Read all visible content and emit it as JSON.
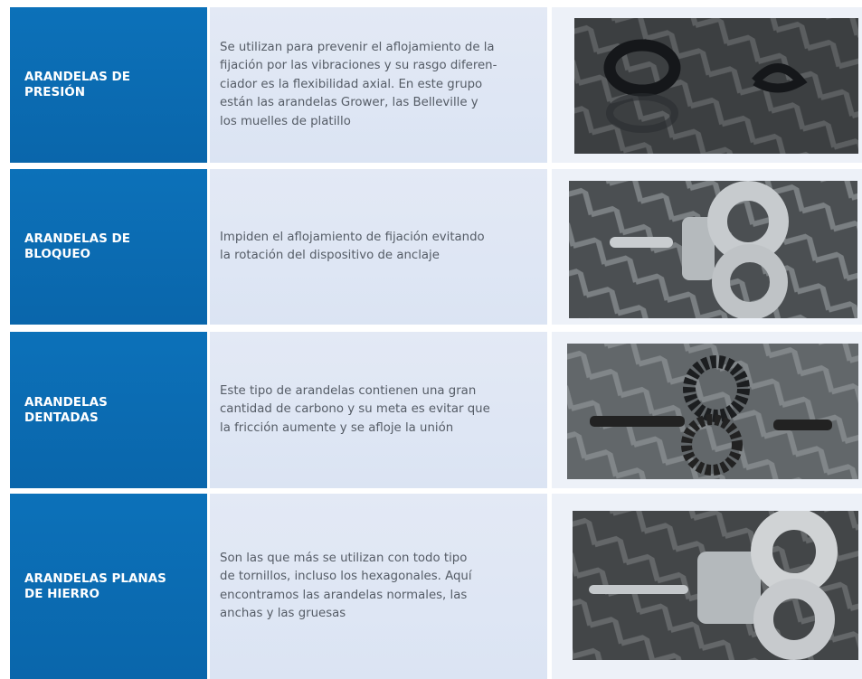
{
  "table": {
    "rows": [
      {
        "title": [
          "ARANDELAS DE",
          "PRESIÓN"
        ],
        "description": [
          "Se utilizan para prevenir el aflojamiento de la",
          "fijación por las vibraciones y su rasgo diferen-",
          "ciador es la flexibilidad axial. En este grupo",
          "están las arandelas Grower, las Belleville y",
          "los muelles de platillo"
        ]
      },
      {
        "title": [
          "ARANDELAS DE",
          "BLOQUEO"
        ],
        "description": [
          "Impiden el aflojamiento de fijación evitando",
          "la rotación del dispositivo de anclaje"
        ]
      },
      {
        "title": [
          "ARANDELAS",
          "DENTADAS"
        ],
        "description": [
          "Este tipo de arandelas contienen una gran",
          "cantidad de carbono y su meta es evitar que",
          "la fricción aumente y se afloje la unión"
        ]
      },
      {
        "title": [
          "ARANDELAS PLANAS",
          "DE HIERRO"
        ],
        "description": [
          "Son las que más se utilizan con todo tipo",
          "de tornillos, incluso los hexagonales. Aquí",
          "encontramos las arandelas normales, las",
          "anchas y las gruesas"
        ]
      }
    ]
  }
}
